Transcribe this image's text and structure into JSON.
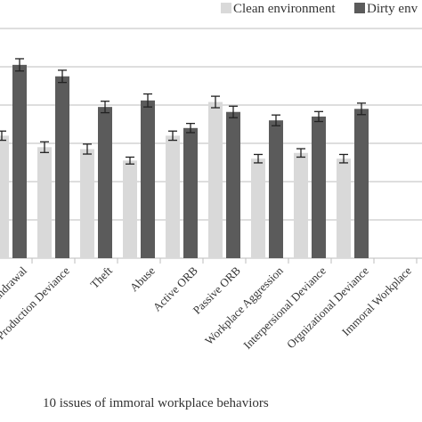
{
  "chart_data": {
    "type": "bar",
    "xlabel": "10 issues of immoral workplace behaviors",
    "ylabel": "",
    "ylim": [
      0,
      6
    ],
    "grid": true,
    "legend_position": "top-right",
    "categories": [
      "Withdrawal",
      "Production Deviance",
      "Theft",
      "Abuse",
      "Active ORB",
      "Passive ORB",
      "Workplace Aggression",
      "Interpersional Deviance",
      "Orgnizational Deviance",
      "Immoral Workplace Behaviors"
    ],
    "visible_category_labels": [
      "thdrawal",
      "Production Deviance",
      "Theft",
      "Abuse",
      "Active ORB",
      "Passive ORB",
      "Workplace Aggression",
      "Interpersional Deviance",
      "Orgnizational Deviance",
      "Immoral Workplace"
    ],
    "series": [
      {
        "name": "Clean environment",
        "color": "#d9d9d9",
        "values": [
          3.2,
          2.9,
          2.85,
          2.55,
          3.2,
          4.08,
          2.6,
          2.75,
          2.6,
          null
        ],
        "errors": [
          0.12,
          0.14,
          0.13,
          0.09,
          0.12,
          0.15,
          0.11,
          0.11,
          0.11,
          null
        ]
      },
      {
        "name": "Dirty environment",
        "color": "#5b5b5b",
        "values": [
          5.05,
          4.75,
          3.95,
          4.12,
          3.4,
          3.82,
          3.6,
          3.7,
          3.9,
          null
        ],
        "errors": [
          0.16,
          0.16,
          0.15,
          0.17,
          0.12,
          0.15,
          0.14,
          0.13,
          0.15,
          null
        ]
      }
    ]
  },
  "legend": {
    "clean_label": "Clean environment",
    "dirty_label": "Dirty env",
    "clean_color": "#d9d9d9",
    "dirty_color": "#5b5b5b"
  }
}
